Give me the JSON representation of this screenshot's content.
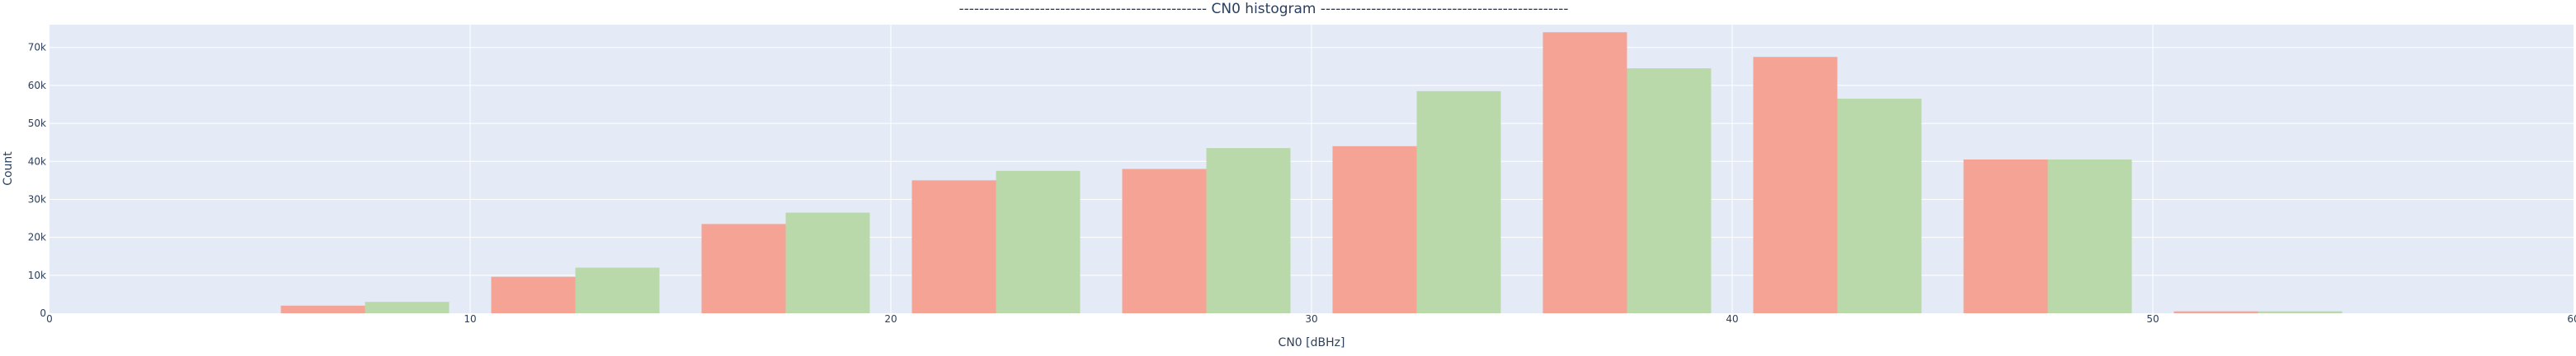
{
  "chart_data": {
    "type": "bar",
    "title": "-------------------------------------------------  CN0 histogram  -------------------------------------------------",
    "xlabel": "CN0 [dBHz]",
    "ylabel": "Count",
    "xlim": [
      0,
      60
    ],
    "ylim": [
      0,
      76000
    ],
    "x_ticks": [
      0,
      10,
      20,
      30,
      40,
      50,
      60
    ],
    "y_ticks": [
      0,
      10000,
      20000,
      30000,
      40000,
      50000,
      60000,
      70000
    ],
    "y_tick_labels": [
      "0",
      "10k",
      "20k",
      "30k",
      "40k",
      "50k",
      "60k",
      "70k"
    ],
    "grid": true,
    "bin_width": 5,
    "bin_centers": [
      7.5,
      12.5,
      17.5,
      22.5,
      27.5,
      32.5,
      37.5,
      42.5,
      47.5,
      52.5
    ],
    "series": [
      {
        "color": "#f4a394",
        "values": [
          2000,
          9600,
          23500,
          35000,
          38000,
          44000,
          74000,
          67500,
          40500,
          500
        ]
      },
      {
        "color": "#bad9ab",
        "values": [
          3000,
          12000,
          26500,
          37500,
          43500,
          58500,
          64500,
          56500,
          40500,
          500
        ]
      }
    ],
    "plot_background": "#e5ebf6",
    "gridline_color": "#ffffff"
  }
}
